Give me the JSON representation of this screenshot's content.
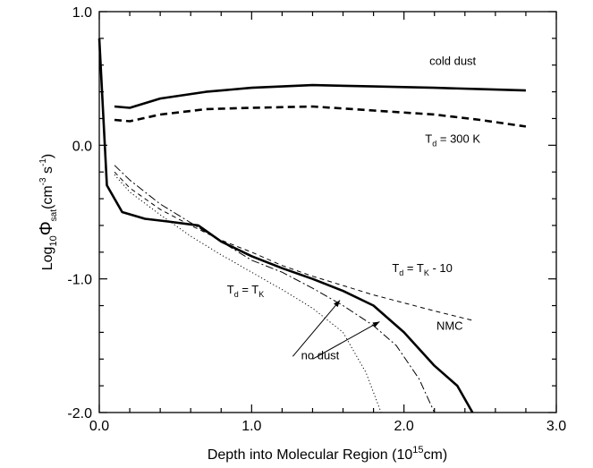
{
  "chart_data": {
    "type": "line",
    "xlabel": {
      "main": "Depth into Molecular Region (10",
      "sup": "15",
      "tail": "cm)"
    },
    "ylabel": {
      "pre": "Log",
      "sub1": "10",
      "phi": "Φ",
      "sub2": "sat",
      "unit_open": "(cm",
      "sup1": "-3",
      "unit_mid": " s",
      "sup2": "-1",
      "unit_close": ")"
    },
    "xlim": [
      0.0,
      3.0
    ],
    "ylim": [
      -2.0,
      1.0
    ],
    "xticks": [
      0.0,
      1.0,
      2.0,
      3.0
    ],
    "yticks": [
      -2.0,
      -1.0,
      0.0,
      1.0
    ],
    "xtick_labels": [
      "0.0",
      "1.0",
      "2.0",
      "3.0"
    ],
    "ytick_labels": [
      "-2.0",
      "-1.0",
      "0.0",
      "1.0"
    ],
    "grid": false,
    "series": [
      {
        "style": "thick-solid",
        "x": [
          0.1,
          0.2,
          0.4,
          0.7,
          1.0,
          1.4,
          1.8,
          2.2,
          2.5,
          2.8
        ],
        "y": [
          0.29,
          0.28,
          0.35,
          0.4,
          0.43,
          0.45,
          0.44,
          0.43,
          0.42,
          0.41
        ]
      },
      {
        "style": "thick-dashed",
        "x": [
          0.1,
          0.2,
          0.4,
          0.7,
          1.0,
          1.4,
          1.8,
          2.2,
          2.5,
          2.8
        ],
        "y": [
          0.19,
          0.18,
          0.23,
          0.27,
          0.28,
          0.29,
          0.26,
          0.23,
          0.19,
          0.14
        ]
      },
      {
        "style": "thick-solid",
        "x": [
          0.0,
          0.05,
          0.15,
          0.3,
          0.45,
          0.65,
          0.8,
          1.0,
          1.2,
          1.4,
          1.6,
          1.8,
          2.0,
          2.2,
          2.35,
          2.45
        ],
        "y": [
          0.8,
          -0.3,
          -0.5,
          -0.55,
          -0.57,
          -0.6,
          -0.72,
          -0.83,
          -0.92,
          -1.0,
          -1.09,
          -1.2,
          -1.4,
          -1.65,
          -1.8,
          -2.0
        ]
      },
      {
        "style": "thin-dashed",
        "x": [
          0.1,
          0.2,
          0.4,
          0.6,
          0.8,
          1.0,
          1.2,
          1.4,
          1.6,
          1.8,
          2.0,
          2.2,
          2.45
        ],
        "y": [
          -0.2,
          -0.32,
          -0.48,
          -0.6,
          -0.71,
          -0.8,
          -0.9,
          -0.98,
          -1.05,
          -1.12,
          -1.18,
          -1.24,
          -1.31
        ]
      },
      {
        "style": "dash-dot",
        "x": [
          0.1,
          0.2,
          0.4,
          0.6,
          0.8,
          1.0,
          1.2,
          1.4,
          1.6,
          1.8,
          1.95,
          2.1,
          2.2
        ],
        "y": [
          -0.15,
          -0.26,
          -0.44,
          -0.58,
          -0.72,
          -0.86,
          -0.95,
          -1.07,
          -1.2,
          -1.35,
          -1.5,
          -1.75,
          -2.0
        ]
      },
      {
        "style": "dotted",
        "x": [
          0.1,
          0.2,
          0.4,
          0.6,
          0.8,
          1.0,
          1.2,
          1.4,
          1.6,
          1.75,
          1.85
        ],
        "y": [
          -0.22,
          -0.35,
          -0.52,
          -0.68,
          -0.82,
          -0.95,
          -1.08,
          -1.22,
          -1.4,
          -1.7,
          -2.0
        ]
      }
    ],
    "annotations": [
      {
        "parts": [
          {
            "t": "cold dust"
          }
        ],
        "x": 2.32,
        "y": 0.6
      },
      {
        "parts": [
          {
            "t": "T"
          },
          {
            "t": "d",
            "sub": true
          },
          {
            "t": " = 300 K"
          }
        ],
        "x": 2.32,
        "y": 0.02
      },
      {
        "parts": [
          {
            "t": "T"
          },
          {
            "t": "d",
            "sub": true
          },
          {
            "t": " = T"
          },
          {
            "t": "K",
            "sub": true
          },
          {
            "t": " - 10"
          }
        ],
        "x": 2.12,
        "y": -0.95
      },
      {
        "parts": [
          {
            "t": "T"
          },
          {
            "t": "d",
            "sub": true
          },
          {
            "t": " = T"
          },
          {
            "t": "K",
            "sub": true
          }
        ],
        "x": 0.96,
        "y": -1.11
      },
      {
        "parts": [
          {
            "t": "NMC"
          }
        ],
        "x": 2.3,
        "y": -1.38
      },
      {
        "parts": [
          {
            "t": "no dust"
          }
        ],
        "x": 1.45,
        "y": -1.6
      }
    ],
    "arrows": [
      {
        "from": [
          1.27,
          -1.58
        ],
        "to": [
          1.58,
          -1.16
        ]
      },
      {
        "from": [
          1.4,
          -1.6
        ],
        "to": [
          1.84,
          -1.32
        ]
      }
    ]
  }
}
